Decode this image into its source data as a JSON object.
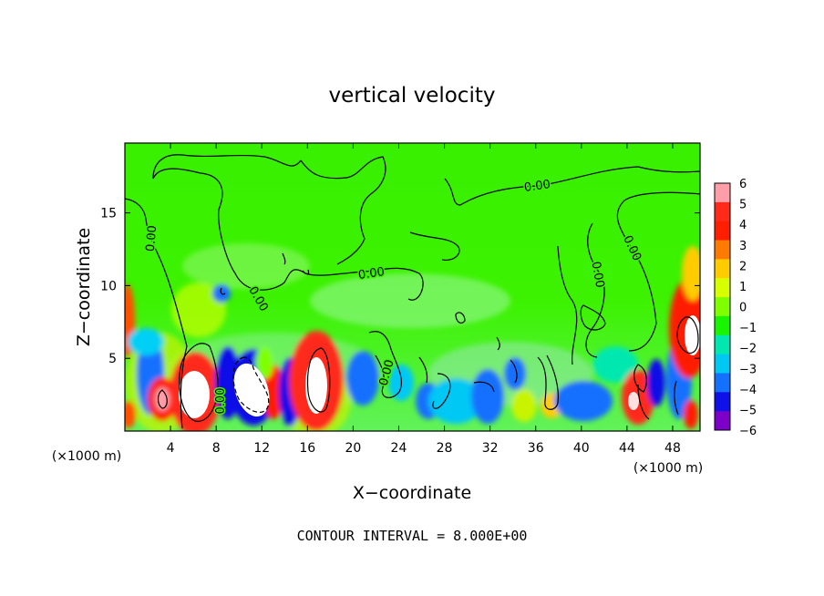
{
  "chart_data": {
    "type": "heatmap",
    "title": "vertical velocity",
    "xlabel": "X−coordinate",
    "ylabel": "Z−coordinate",
    "x_unit_left": "(×1000 m)",
    "x_unit_right": "(×1000 m)",
    "xlim": [
      0,
      50.4
    ],
    "ylim": [
      0,
      19.8
    ],
    "x_ticks": [
      "4",
      "8",
      "12",
      "16",
      "20",
      "24",
      "28",
      "32",
      "36",
      "40",
      "44",
      "48"
    ],
    "y_ticks": [
      "5",
      "10",
      "15"
    ],
    "colorbar_ticks": [
      "6",
      "5",
      "4",
      "3",
      "2",
      "1",
      "0",
      "−1",
      "−2",
      "−3",
      "−4",
      "−5",
      "−6"
    ],
    "colorbar_colors": [
      "#ff9ea8",
      "#ff2a1a",
      "#ff1f00",
      "#ff7a00",
      "#ffcc00",
      "#d8ff00",
      "#7fff00",
      "#18f500",
      "#00e8b0",
      "#00c8f5",
      "#1470ff",
      "#1010e8",
      "#7c00c8"
    ],
    "contour_label": "0.00",
    "footnote": "CONTOUR INTERVAL = 8.000E+00",
    "features": [
      {
        "x": 6.4,
        "z": 2.6,
        "value": 8
      },
      {
        "x": 10.8,
        "z": 3.2,
        "value": 8
      },
      {
        "x": 16.8,
        "z": 3.2,
        "value": 8
      },
      {
        "x": 49.2,
        "z": 6.6,
        "value": 8
      },
      {
        "x": 2.9,
        "z": 2.2,
        "value": 5
      },
      {
        "x": 43.9,
        "z": 2.1,
        "value": 5
      },
      {
        "x": 3.2,
        "z": 4.5,
        "value": -4
      },
      {
        "x": 9.2,
        "z": 3.6,
        "value": -4
      },
      {
        "x": 13.6,
        "z": 3.0,
        "value": -4
      },
      {
        "x": 20.4,
        "z": 3.6,
        "value": -3
      },
      {
        "x": 40.2,
        "z": 2.2,
        "value": -3
      },
      {
        "x": 46.2,
        "z": 3.2,
        "value": -3
      },
      {
        "x": 32.1,
        "z": 2.8,
        "value": -2
      },
      {
        "x": 36.5,
        "z": 2.3,
        "value": 1
      }
    ]
  }
}
